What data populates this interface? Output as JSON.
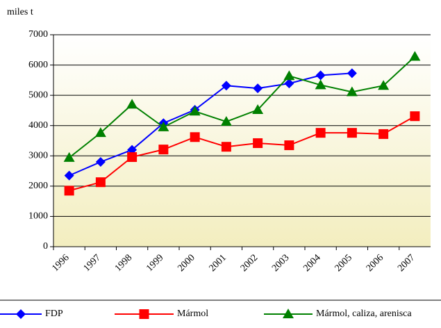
{
  "chart_data": {
    "type": "line",
    "y_axis_label": "miles t",
    "categories": [
      "1996",
      "1997",
      "1998",
      "1999",
      "2000",
      "2001",
      "2002",
      "2003",
      "2004",
      "2005",
      "2006",
      "2007"
    ],
    "series": [
      {
        "name": "FDP",
        "color": "#0000ff",
        "marker": "diamond",
        "values": [
          2350,
          2800,
          3200,
          4080,
          4520,
          5320,
          5230,
          5390,
          5660,
          5730,
          null,
          null
        ]
      },
      {
        "name": "Mármol",
        "color": "#ff0000",
        "marker": "square",
        "values": [
          1850,
          2130,
          2960,
          3210,
          3620,
          3300,
          3420,
          3350,
          3760,
          3760,
          3720,
          4310
        ]
      },
      {
        "name": "Mármol, caliza, arenisca",
        "color": "#008000",
        "marker": "triangle",
        "values": [
          2940,
          3760,
          4700,
          3950,
          4470,
          4130,
          4520,
          5640,
          5340,
          5110,
          5320,
          6280
        ]
      }
    ],
    "ylim": [
      0,
      7000
    ],
    "yticks": [
      0,
      1000,
      2000,
      3000,
      4000,
      5000,
      6000,
      7000
    ],
    "grid": true,
    "legend": "bottom"
  }
}
